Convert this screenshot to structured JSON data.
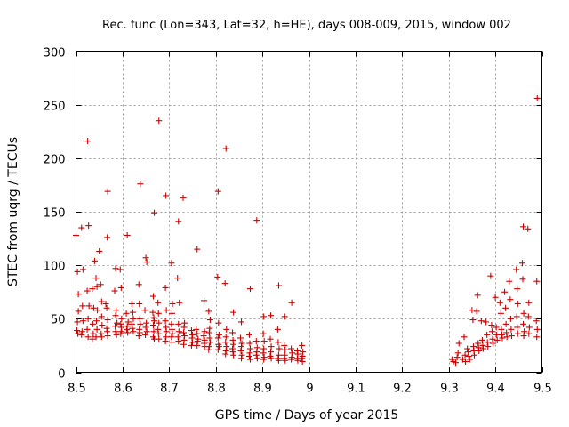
{
  "chart_data": {
    "type": "scatter",
    "title": "Rec. func (Lon=343, Lat=32, h=HE), days 008-009, 2015, window 002",
    "xlabel": "GPS time / Days of year 2015",
    "ylabel": "STEC from uqrg / TECUs",
    "xlim": [
      8.5,
      9.5
    ],
    "ylim": [
      0,
      300
    ],
    "grid": true,
    "marker": "plus",
    "color": "#cc0000",
    "x_ticks": [
      "8.5",
      "8.6",
      "8.7",
      "8.8",
      "8.9",
      "9",
      "9.1",
      "9.2",
      "9.3",
      "9.4",
      "9.5"
    ],
    "y_ticks": [
      "0",
      "50",
      "100",
      "150",
      "200",
      "250",
      "300"
    ],
    "x_tick_values": [
      8.5,
      8.6,
      8.7,
      8.8,
      8.9,
      9.0,
      9.1,
      9.2,
      9.3,
      9.4,
      9.5
    ],
    "y_tick_values": [
      0,
      50,
      100,
      150,
      200,
      250,
      300
    ],
    "series": [
      {
        "name": "STEC",
        "points": [
          [
            8.5,
            128
          ],
          [
            8.503,
            94
          ],
          [
            8.505,
            73
          ],
          [
            8.505,
            57
          ],
          [
            8.503,
            47
          ],
          [
            8.502,
            39
          ],
          [
            8.504,
            36
          ],
          [
            8.512,
            135
          ],
          [
            8.515,
            96
          ],
          [
            8.514,
            62
          ],
          [
            8.515,
            48
          ],
          [
            8.513,
            38
          ],
          [
            8.512,
            35
          ],
          [
            8.525,
            216
          ],
          [
            8.527,
            137
          ],
          [
            8.524,
            76
          ],
          [
            8.528,
            62
          ],
          [
            8.526,
            50
          ],
          [
            8.524,
            40
          ],
          [
            8.526,
            33
          ],
          [
            8.535,
            78
          ],
          [
            8.538,
            60
          ],
          [
            8.536,
            45
          ],
          [
            8.537,
            36
          ],
          [
            8.535,
            31
          ],
          [
            8.54,
            104
          ],
          [
            8.543,
            88
          ],
          [
            8.545,
            80
          ],
          [
            8.546,
            58
          ],
          [
            8.544,
            48
          ],
          [
            8.545,
            40
          ],
          [
            8.543,
            33
          ],
          [
            8.55,
            113
          ],
          [
            8.553,
            82
          ],
          [
            8.555,
            66
          ],
          [
            8.555,
            52
          ],
          [
            8.556,
            44
          ],
          [
            8.554,
            36
          ],
          [
            8.555,
            33
          ],
          [
            8.568,
            169
          ],
          [
            8.567,
            126
          ],
          [
            8.564,
            64
          ],
          [
            8.566,
            60
          ],
          [
            8.568,
            49
          ],
          [
            8.566,
            41
          ],
          [
            8.567,
            38
          ],
          [
            8.568,
            34
          ],
          [
            8.585,
            97
          ],
          [
            8.583,
            76
          ],
          [
            8.586,
            58
          ],
          [
            8.585,
            53
          ],
          [
            8.588,
            46
          ],
          [
            8.584,
            43
          ],
          [
            8.585,
            38
          ],
          [
            8.587,
            35
          ],
          [
            8.595,
            96
          ],
          [
            8.597,
            79
          ],
          [
            8.598,
            50
          ],
          [
            8.596,
            45
          ],
          [
            8.597,
            42
          ],
          [
            8.598,
            38
          ],
          [
            8.596,
            36
          ],
          [
            8.61,
            128
          ],
          [
            8.608,
            55
          ],
          [
            8.612,
            47
          ],
          [
            8.61,
            43
          ],
          [
            8.609,
            40
          ],
          [
            8.611,
            37
          ],
          [
            8.62,
            64
          ],
          [
            8.622,
            56
          ],
          [
            8.623,
            50
          ],
          [
            8.62,
            45
          ],
          [
            8.621,
            41
          ],
          [
            8.623,
            38
          ],
          [
            8.638,
            176
          ],
          [
            8.635,
            82
          ],
          [
            8.636,
            64
          ],
          [
            8.637,
            50
          ],
          [
            8.638,
            45
          ],
          [
            8.636,
            40
          ],
          [
            8.637,
            37
          ],
          [
            8.635,
            34
          ],
          [
            8.65,
            107
          ],
          [
            8.652,
            103
          ],
          [
            8.648,
            58
          ],
          [
            8.651,
            46
          ],
          [
            8.65,
            42
          ],
          [
            8.652,
            38
          ],
          [
            8.649,
            35
          ],
          [
            8.668,
            149
          ],
          [
            8.666,
            71
          ],
          [
            8.665,
            56
          ],
          [
            8.667,
            51
          ],
          [
            8.668,
            48
          ],
          [
            8.666,
            44
          ],
          [
            8.667,
            38
          ],
          [
            8.666,
            33
          ],
          [
            8.668,
            31
          ],
          [
            8.678,
            235
          ],
          [
            8.676,
            65
          ],
          [
            8.677,
            55
          ],
          [
            8.678,
            46
          ],
          [
            8.676,
            40
          ],
          [
            8.677,
            36
          ],
          [
            8.678,
            31
          ],
          [
            8.693,
            165
          ],
          [
            8.692,
            79
          ],
          [
            8.694,
            58
          ],
          [
            8.692,
            48
          ],
          [
            8.693,
            42
          ],
          [
            8.694,
            38
          ],
          [
            8.693,
            33
          ],
          [
            8.692,
            29
          ],
          [
            8.705,
            102
          ],
          [
            8.707,
            64
          ],
          [
            8.706,
            55
          ],
          [
            8.705,
            45
          ],
          [
            8.706,
            40
          ],
          [
            8.707,
            36
          ],
          [
            8.705,
            33
          ],
          [
            8.706,
            28
          ],
          [
            8.72,
            141
          ],
          [
            8.718,
            88
          ],
          [
            8.722,
            65
          ],
          [
            8.72,
            45
          ],
          [
            8.721,
            38
          ],
          [
            8.719,
            33
          ],
          [
            8.72,
            29
          ],
          [
            8.73,
            163
          ],
          [
            8.733,
            46
          ],
          [
            8.732,
            42
          ],
          [
            8.731,
            37
          ],
          [
            8.733,
            34
          ],
          [
            8.732,
            30
          ],
          [
            8.731,
            26
          ],
          [
            8.748,
            39
          ],
          [
            8.75,
            35
          ],
          [
            8.749,
            32
          ],
          [
            8.75,
            28
          ],
          [
            8.748,
            25
          ],
          [
            8.76,
            115
          ],
          [
            8.758,
            40
          ],
          [
            8.76,
            36
          ],
          [
            8.762,
            31
          ],
          [
            8.761,
            29
          ],
          [
            8.76,
            25
          ],
          [
            8.775,
            67
          ],
          [
            8.776,
            38
          ],
          [
            8.774,
            34
          ],
          [
            8.776,
            30
          ],
          [
            8.775,
            27
          ],
          [
            8.776,
            24
          ],
          [
            8.785,
            57
          ],
          [
            8.788,
            49
          ],
          [
            8.787,
            41
          ],
          [
            8.786,
            37
          ],
          [
            8.787,
            32
          ],
          [
            8.788,
            28
          ],
          [
            8.786,
            24
          ],
          [
            8.785,
            21
          ],
          [
            8.805,
            169
          ],
          [
            8.804,
            89
          ],
          [
            8.806,
            46
          ],
          [
            8.807,
            35
          ],
          [
            8.805,
            32
          ],
          [
            8.806,
            26
          ],
          [
            8.807,
            24
          ],
          [
            8.805,
            21
          ],
          [
            8.822,
            209
          ],
          [
            8.82,
            83
          ],
          [
            8.823,
            40
          ],
          [
            8.822,
            33
          ],
          [
            8.821,
            28
          ],
          [
            8.823,
            24
          ],
          [
            8.822,
            20
          ],
          [
            8.821,
            17
          ],
          [
            8.838,
            56
          ],
          [
            8.836,
            37
          ],
          [
            8.837,
            30
          ],
          [
            8.838,
            26
          ],
          [
            8.836,
            22
          ],
          [
            8.837,
            19
          ],
          [
            8.838,
            16
          ],
          [
            8.855,
            47
          ],
          [
            8.853,
            32
          ],
          [
            8.856,
            27
          ],
          [
            8.855,
            24
          ],
          [
            8.854,
            20
          ],
          [
            8.856,
            16
          ],
          [
            8.855,
            13
          ],
          [
            8.874,
            78
          ],
          [
            8.872,
            35
          ],
          [
            8.873,
            27
          ],
          [
            8.874,
            22
          ],
          [
            8.873,
            18
          ],
          [
            8.872,
            15
          ],
          [
            8.874,
            12
          ],
          [
            8.888,
            142
          ],
          [
            8.887,
            29
          ],
          [
            8.889,
            23
          ],
          [
            8.888,
            19
          ],
          [
            8.887,
            16
          ],
          [
            8.889,
            13
          ],
          [
            8.903,
            52
          ],
          [
            8.902,
            36
          ],
          [
            8.904,
            29
          ],
          [
            8.903,
            22
          ],
          [
            8.902,
            18
          ],
          [
            8.904,
            14
          ],
          [
            8.903,
            12
          ],
          [
            8.918,
            53
          ],
          [
            8.917,
            31
          ],
          [
            8.919,
            24
          ],
          [
            8.918,
            19
          ],
          [
            8.917,
            15
          ],
          [
            8.919,
            13
          ],
          [
            8.935,
            81
          ],
          [
            8.933,
            40
          ],
          [
            8.934,
            28
          ],
          [
            8.936,
            22
          ],
          [
            8.935,
            16
          ],
          [
            8.934,
            13
          ],
          [
            8.935,
            11
          ],
          [
            8.948,
            52
          ],
          [
            8.947,
            25
          ],
          [
            8.949,
            21
          ],
          [
            8.948,
            16
          ],
          [
            8.947,
            13
          ],
          [
            8.949,
            11
          ],
          [
            8.963,
            65
          ],
          [
            8.962,
            22
          ],
          [
            8.964,
            18
          ],
          [
            8.963,
            14
          ],
          [
            8.962,
            12
          ],
          [
            8.975,
            20
          ],
          [
            8.976,
            17
          ],
          [
            8.975,
            13
          ],
          [
            8.976,
            11
          ],
          [
            8.985,
            25
          ],
          [
            8.987,
            19
          ],
          [
            8.986,
            15
          ],
          [
            8.985,
            13
          ],
          [
            8.986,
            10
          ],
          [
            9.307,
            12
          ],
          [
            9.31,
            10
          ],
          [
            9.315,
            9
          ],
          [
            9.318,
            14
          ],
          [
            9.32,
            18
          ],
          [
            9.322,
            27
          ],
          [
            9.33,
            12
          ],
          [
            9.333,
            33
          ],
          [
            9.335,
            16
          ],
          [
            9.336,
            10
          ],
          [
            9.34,
            22
          ],
          [
            9.342,
            19
          ],
          [
            9.343,
            15
          ],
          [
            9.345,
            12
          ],
          [
            9.35,
            58
          ],
          [
            9.352,
            49
          ],
          [
            9.353,
            24
          ],
          [
            9.354,
            20
          ],
          [
            9.355,
            16
          ],
          [
            9.36,
            57
          ],
          [
            9.362,
            72
          ],
          [
            9.363,
            27
          ],
          [
            9.364,
            23
          ],
          [
            9.365,
            20
          ],
          [
            9.37,
            48
          ],
          [
            9.372,
            30
          ],
          [
            9.373,
            25
          ],
          [
            9.374,
            22
          ],
          [
            9.38,
            47
          ],
          [
            9.382,
            35
          ],
          [
            9.383,
            28
          ],
          [
            9.384,
            24
          ],
          [
            9.39,
            90
          ],
          [
            9.392,
            44
          ],
          [
            9.393,
            38
          ],
          [
            9.394,
            31
          ],
          [
            9.395,
            27
          ],
          [
            9.4,
            70
          ],
          [
            9.402,
            42
          ],
          [
            9.403,
            35
          ],
          [
            9.404,
            30
          ],
          [
            9.41,
            65
          ],
          [
            9.412,
            55
          ],
          [
            9.413,
            40
          ],
          [
            9.414,
            35
          ],
          [
            9.415,
            32
          ],
          [
            9.42,
            75
          ],
          [
            9.422,
            60
          ],
          [
            9.423,
            45
          ],
          [
            9.424,
            37
          ],
          [
            9.425,
            33
          ],
          [
            9.43,
            85
          ],
          [
            9.432,
            68
          ],
          [
            9.433,
            50
          ],
          [
            9.434,
            40
          ],
          [
            9.435,
            34
          ],
          [
            9.445,
            96
          ],
          [
            9.447,
            78
          ],
          [
            9.448,
            64
          ],
          [
            9.446,
            52
          ],
          [
            9.447,
            42
          ],
          [
            9.448,
            36
          ],
          [
            9.46,
            136
          ],
          [
            9.458,
            102
          ],
          [
            9.459,
            87
          ],
          [
            9.461,
            55
          ],
          [
            9.46,
            45
          ],
          [
            9.462,
            38
          ],
          [
            9.461,
            34
          ],
          [
            9.47,
            134
          ],
          [
            9.472,
            65
          ],
          [
            9.471,
            52
          ],
          [
            9.473,
            42
          ],
          [
            9.472,
            36
          ],
          [
            9.49,
            256
          ],
          [
            9.489,
            85
          ],
          [
            9.488,
            48
          ],
          [
            9.49,
            40
          ],
          [
            9.489,
            33
          ]
        ]
      }
    ]
  }
}
